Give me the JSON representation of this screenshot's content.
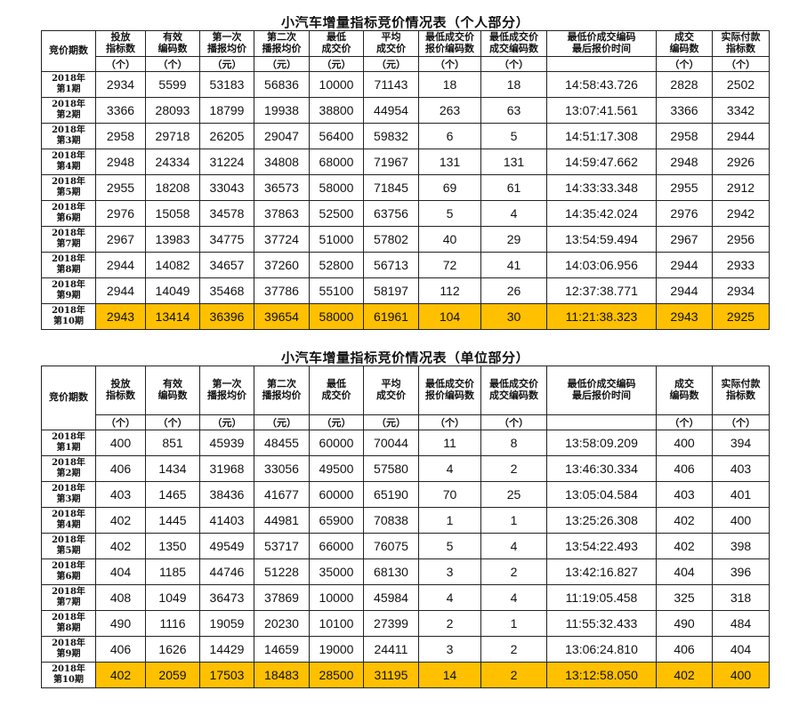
{
  "columns": [
    "竞价期数",
    "投放\n指标数",
    "有效\n编码数",
    "第一次\n播报均价",
    "第二次\n播报均价",
    "最低\n成交价",
    "平均\n成交价",
    "最低成交价\n报价编码数",
    "最低成交价\n成交编码数",
    "最低价成交编码\n最后报价时间",
    "成交\n编码数",
    "实际付款\n指标数"
  ],
  "units": [
    "（个）",
    "（个）",
    "（元）",
    "（元）",
    "（元）",
    "（元）",
    "（个）",
    "（个）",
    "",
    "（个）",
    "（个）"
  ],
  "highlight_color": "#FFC000",
  "tables": [
    {
      "title": "小汽车增量指标竞价情况表（个人部分）",
      "rows": [
        {
          "period": "2018年\n第1期",
          "values": [
            "2934",
            "5599",
            "53183",
            "56836",
            "10000",
            "71143",
            "18",
            "18",
            "14:58:43.726",
            "2828",
            "2502"
          ]
        },
        {
          "period": "2018年\n第2期",
          "values": [
            "3366",
            "28093",
            "18799",
            "19938",
            "38800",
            "44954",
            "263",
            "63",
            "13:07:41.561",
            "3366",
            "3342"
          ]
        },
        {
          "period": "2018年\n第3期",
          "values": [
            "2958",
            "29718",
            "26205",
            "29047",
            "56400",
            "59832",
            "6",
            "5",
            "14:51:17.308",
            "2958",
            "2944"
          ]
        },
        {
          "period": "2018年\n第4期",
          "values": [
            "2948",
            "24334",
            "31224",
            "34808",
            "68000",
            "71967",
            "131",
            "131",
            "14:59:47.662",
            "2948",
            "2926"
          ]
        },
        {
          "period": "2018年\n第5期",
          "values": [
            "2955",
            "18208",
            "33043",
            "36573",
            "58000",
            "71845",
            "69",
            "61",
            "14:33:33.348",
            "2955",
            "2912"
          ]
        },
        {
          "period": "2018年\n第6期",
          "values": [
            "2976",
            "15058",
            "34578",
            "37863",
            "52500",
            "63756",
            "5",
            "4",
            "14:35:42.024",
            "2976",
            "2942"
          ]
        },
        {
          "period": "2018年\n第7期",
          "values": [
            "2967",
            "13983",
            "34775",
            "37724",
            "51000",
            "57802",
            "40",
            "29",
            "13:54:59.494",
            "2967",
            "2956"
          ]
        },
        {
          "period": "2018年\n第8期",
          "values": [
            "2944",
            "14082",
            "34657",
            "37260",
            "52800",
            "56713",
            "72",
            "41",
            "14:03:06.956",
            "2944",
            "2933"
          ]
        },
        {
          "period": "2018年\n第9期",
          "values": [
            "2944",
            "14049",
            "35468",
            "37786",
            "55100",
            "58197",
            "112",
            "26",
            "12:37:38.771",
            "2944",
            "2934"
          ]
        },
        {
          "period": "2018年\n第10期",
          "values": [
            "2943",
            "13414",
            "36396",
            "39654",
            "58000",
            "61961",
            "104",
            "30",
            "11:21:38.323",
            "2943",
            "2925"
          ],
          "highlighted": true
        }
      ]
    },
    {
      "title": "小汽车增量指标竞价情况表（单位部分）",
      "rows": [
        {
          "period": "2018年\n第1期",
          "values": [
            "400",
            "851",
            "45939",
            "48455",
            "60000",
            "70044",
            "11",
            "8",
            "13:58:09.209",
            "400",
            "394"
          ]
        },
        {
          "period": "2018年\n第2期",
          "values": [
            "406",
            "1434",
            "31968",
            "33056",
            "49500",
            "57580",
            "4",
            "2",
            "13:46:30.334",
            "406",
            "403"
          ]
        },
        {
          "period": "2018年\n第3期",
          "values": [
            "403",
            "1465",
            "38436",
            "41677",
            "60000",
            "65190",
            "70",
            "25",
            "13:05:04.584",
            "403",
            "401"
          ]
        },
        {
          "period": "2018年\n第4期",
          "values": [
            "402",
            "1445",
            "41403",
            "44981",
            "65900",
            "70838",
            "1",
            "1",
            "13:25:26.308",
            "402",
            "400"
          ]
        },
        {
          "period": "2018年\n第5期",
          "values": [
            "402",
            "1350",
            "49549",
            "53717",
            "66000",
            "76075",
            "5",
            "4",
            "13:54:22.493",
            "402",
            "398"
          ]
        },
        {
          "period": "2018年\n第6期",
          "values": [
            "404",
            "1185",
            "44746",
            "51228",
            "35000",
            "68130",
            "3",
            "2",
            "13:42:16.827",
            "404",
            "396"
          ]
        },
        {
          "period": "2018年\n第7期",
          "values": [
            "408",
            "1049",
            "36473",
            "37869",
            "10000",
            "45984",
            "4",
            "4",
            "11:19:05.458",
            "325",
            "318"
          ]
        },
        {
          "period": "2018年\n第8期",
          "values": [
            "490",
            "1116",
            "19059",
            "20230",
            "10100",
            "27399",
            "2",
            "1",
            "11:55:32.433",
            "490",
            "484"
          ]
        },
        {
          "period": "2018年\n第9期",
          "values": [
            "406",
            "1626",
            "14429",
            "14659",
            "19000",
            "24411",
            "3",
            "2",
            "13:06:24.810",
            "406",
            "404"
          ]
        },
        {
          "period": "2018年\n第10期",
          "values": [
            "402",
            "2059",
            "17503",
            "18483",
            "28500",
            "31195",
            "14",
            "2",
            "13:12:58.050",
            "402",
            "400"
          ],
          "highlighted": true
        }
      ]
    }
  ]
}
